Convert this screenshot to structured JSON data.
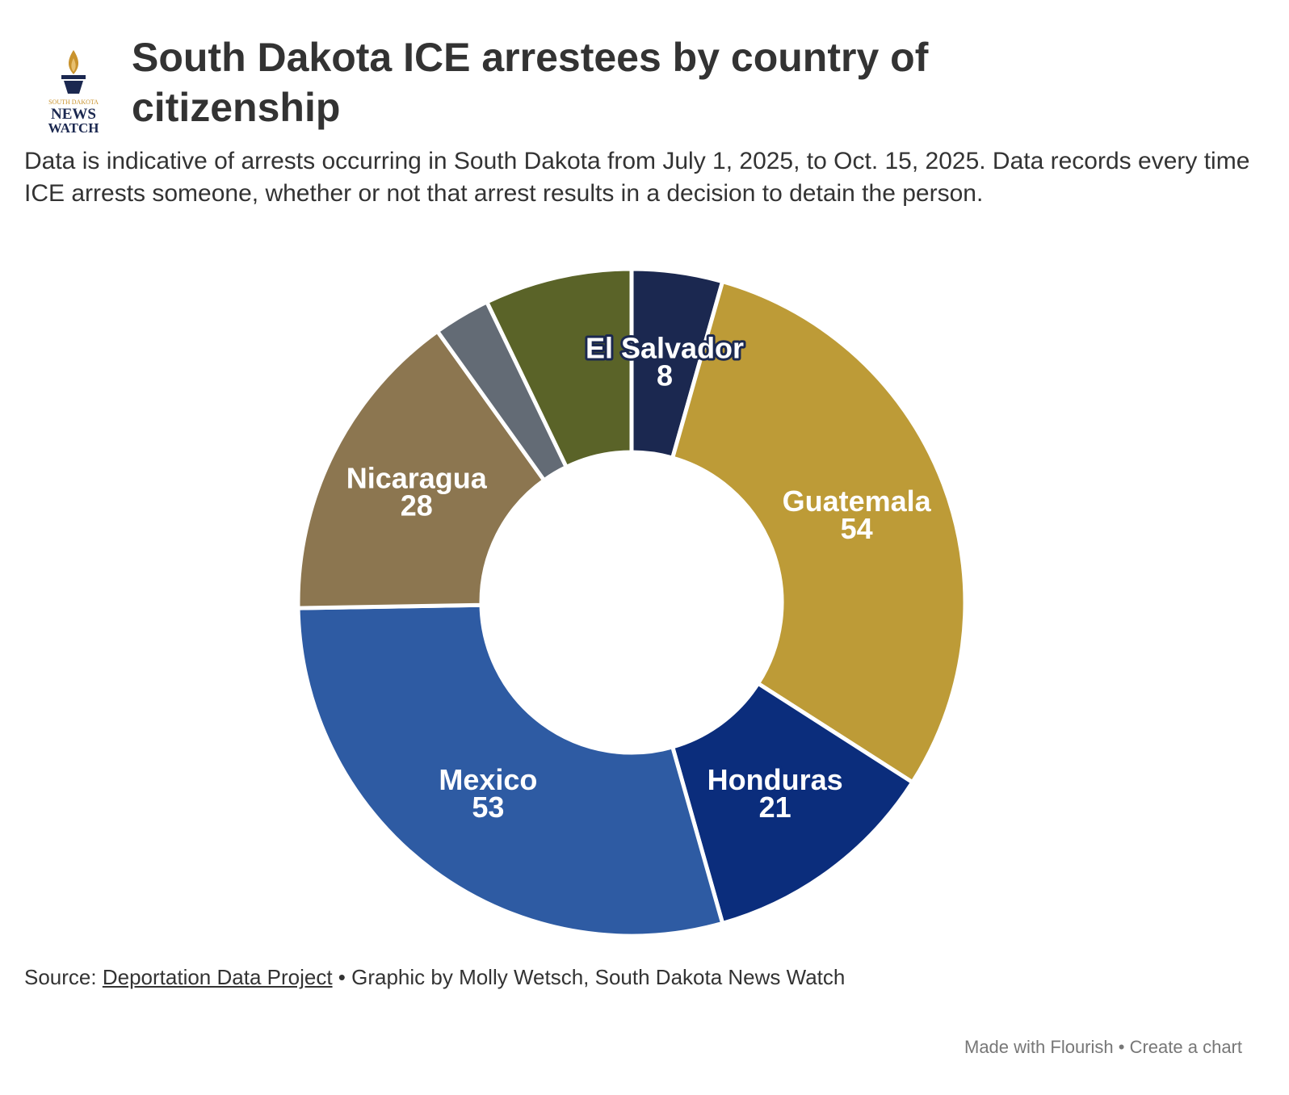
{
  "logo": {
    "line1": "SOUTH DAKOTA",
    "line2": "NEWS",
    "line3": "WATCH"
  },
  "chart_data": {
    "type": "donut",
    "title": "South Dakota ICE arrestees by country of citizenship",
    "subtitle": "Data is indicative of arrests occurring in South Dakota from July 1, 2025, to Oct. 15, 2025. Data records every time ICE arrests someone, whether or not that arrest results in a decision to detain the person.",
    "categories": [
      "El Salvador",
      "Guatemala",
      "Honduras",
      "Mexico",
      "Nicaragua",
      null,
      null
    ],
    "values": [
      8,
      54,
      21,
      53,
      28,
      5,
      13
    ],
    "colors": [
      "#1b2850",
      "#bd9b37",
      "#0b2d7c",
      "#2e5ba3",
      "#8c7650",
      "#636b75",
      "#5a6328"
    ]
  },
  "source": {
    "prefix": "Source:",
    "link": "Deportation Data Project",
    "suffix": "• Graphic by Molly Wetsch, South Dakota News Watch"
  },
  "footer": {
    "made": "Made with Flourish",
    "separator": "•",
    "create": "Create a chart"
  }
}
